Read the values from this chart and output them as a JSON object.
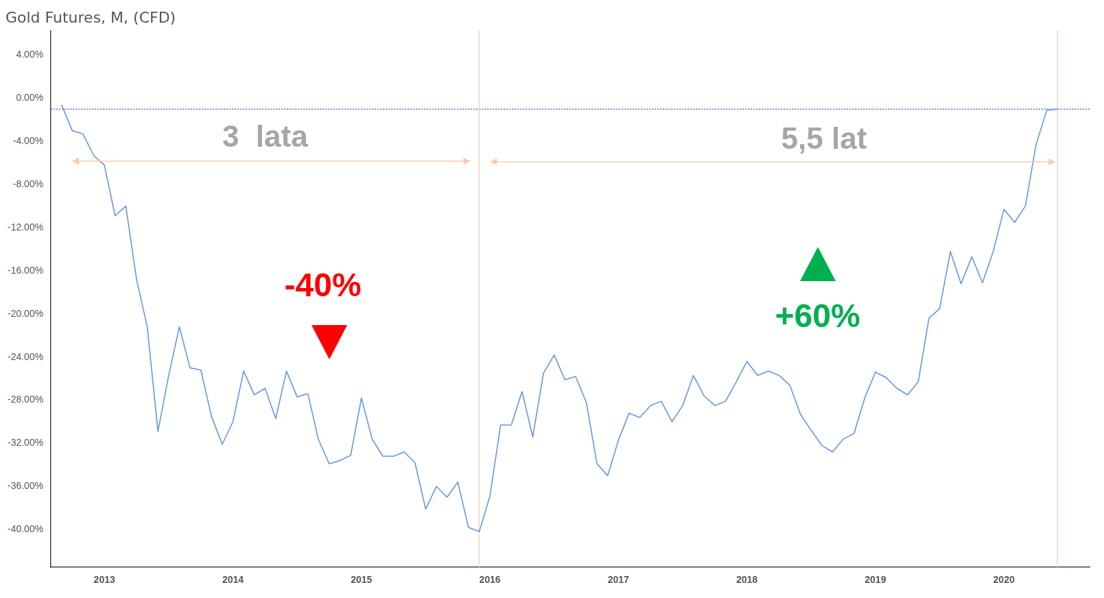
{
  "chart_data": {
    "type": "line",
    "title": "Gold Futures, M, (CFD)",
    "x": [
      "2012-09",
      "2012-10",
      "2012-11",
      "2012-12",
      "2013-01",
      "2013-02",
      "2013-03",
      "2013-04",
      "2013-05",
      "2013-06",
      "2013-07",
      "2013-08",
      "2013-09",
      "2013-10",
      "2013-11",
      "2013-12",
      "2014-01",
      "2014-02",
      "2014-03",
      "2014-04",
      "2014-05",
      "2014-06",
      "2014-07",
      "2014-08",
      "2014-09",
      "2014-10",
      "2014-11",
      "2014-12",
      "2015-01",
      "2015-02",
      "2015-03",
      "2015-04",
      "2015-05",
      "2015-06",
      "2015-07",
      "2015-08",
      "2015-09",
      "2015-10",
      "2015-11",
      "2015-12",
      "2016-01",
      "2016-02",
      "2016-03",
      "2016-04",
      "2016-05",
      "2016-06",
      "2016-07",
      "2016-08",
      "2016-09",
      "2016-10",
      "2016-11",
      "2016-12",
      "2017-01",
      "2017-02",
      "2017-03",
      "2017-04",
      "2017-05",
      "2017-06",
      "2017-07",
      "2017-08",
      "2017-09",
      "2017-10",
      "2017-11",
      "2017-12",
      "2018-01",
      "2018-02",
      "2018-03",
      "2018-04",
      "2018-05",
      "2018-06",
      "2018-07",
      "2018-08",
      "2018-09",
      "2018-10",
      "2018-11",
      "2018-12",
      "2019-01",
      "2019-02",
      "2019-03",
      "2019-04",
      "2019-05",
      "2019-06",
      "2019-07",
      "2019-08",
      "2019-09",
      "2019-10",
      "2019-11",
      "2019-12",
      "2020-01",
      "2020-02",
      "2020-03",
      "2020-04",
      "2020-05",
      "2020-06"
    ],
    "series": [
      {
        "color": "#6495ed",
        "values": [
          -0.6,
          -3.0,
          -3.3,
          -5.3,
          -6.2,
          -10.9,
          -10.0,
          -16.8,
          -21.2,
          -30.9,
          -25.7,
          -21.2,
          -25.0,
          -25.2,
          -29.5,
          -32.1,
          -30.0,
          -25.3,
          -27.5,
          -26.9,
          -29.7,
          -25.3,
          -27.7,
          -27.4,
          -31.7,
          -33.9,
          -33.6,
          -33.1,
          -27.8,
          -31.6,
          -33.2,
          -33.2,
          -32.8,
          -33.8,
          -38.1,
          -36.0,
          -37.0,
          -35.6,
          -39.8,
          -40.2,
          -36.9,
          -30.3,
          -30.3,
          -27.2,
          -31.4,
          -25.5,
          -23.8,
          -26.1,
          -25.8,
          -28.2,
          -33.9,
          -35.0,
          -31.7,
          -29.2,
          -29.6,
          -28.5,
          -28.1,
          -30.0,
          -28.5,
          -25.7,
          -27.6,
          -28.5,
          -28.1,
          -26.3,
          -24.4,
          -25.7,
          -25.3,
          -25.7,
          -26.6,
          -29.3,
          -30.8,
          -32.2,
          -32.8,
          -31.6,
          -31.1,
          -27.8,
          -25.4,
          -25.9,
          -26.9,
          -27.5,
          -26.3,
          -20.4,
          -19.5,
          -14.2,
          -17.2,
          -14.7,
          -17.1,
          -14.2,
          -10.3,
          -11.5,
          -10.0,
          -4.3,
          -1.1,
          -1.0
        ]
      }
    ],
    "xlim": [
      "2012-08",
      "2020-09"
    ],
    "xticks": [
      "2013",
      "2014",
      "2015",
      "2016",
      "2017",
      "2018",
      "2019",
      "2020"
    ],
    "ylim": [
      -43.5,
      6.3
    ],
    "yticks": [
      {
        "value": 4,
        "label": "4.00%"
      },
      {
        "value": 0,
        "label": "0.00%"
      },
      {
        "value": -4,
        "label": "-4.00%"
      },
      {
        "value": -8,
        "label": "-8.00%"
      },
      {
        "value": -12,
        "label": "-12.00%"
      },
      {
        "value": -16,
        "label": "-16.00%"
      },
      {
        "value": -20,
        "label": "-20.00%"
      },
      {
        "value": -24,
        "label": "-24.00%"
      },
      {
        "value": -28,
        "label": "-28.00%"
      },
      {
        "value": -32,
        "label": "-32.00%"
      },
      {
        "value": -36,
        "label": "-36.00%"
      },
      {
        "value": -40,
        "label": "-40.00%"
      }
    ],
    "ref_lines": [
      {
        "axis": "y",
        "value": -1,
        "color": "#2f4fd0",
        "line_style": "dotted"
      },
      {
        "axis": "x",
        "value": "2015-12",
        "color": "#f8cbad",
        "line_style": "solid"
      },
      {
        "axis": "x",
        "value": "2020-06",
        "color": "#f8cbad",
        "line_style": "solid"
      }
    ],
    "annotations": [
      "3  lata",
      "5,5 lat",
      "-40%",
      "+60%"
    ],
    "grid": false,
    "legend": false,
    "marker": "none",
    "line_style": "solid"
  }
}
